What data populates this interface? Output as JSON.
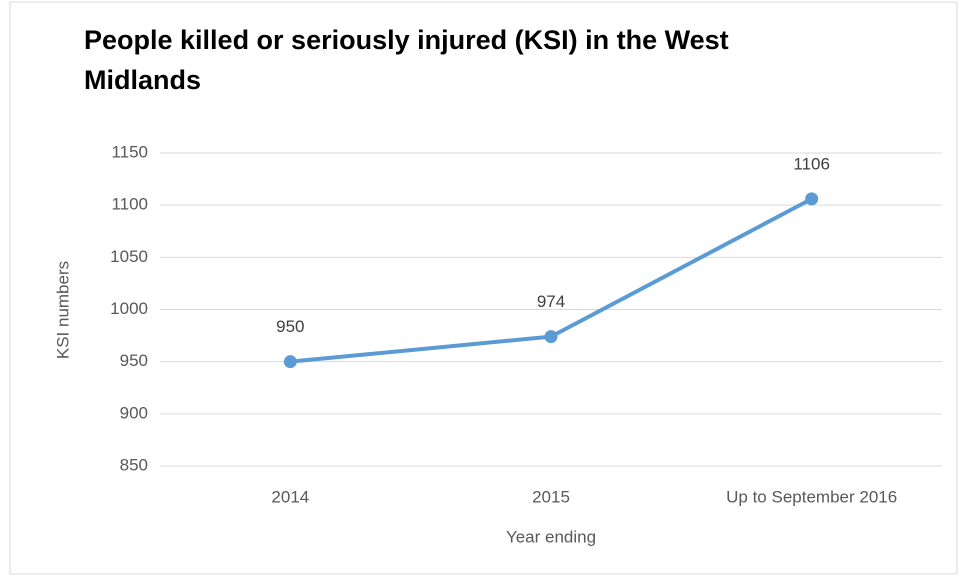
{
  "chart_data": {
    "type": "line",
    "title": "People killed or seriously injured (KSI) in the West Midlands",
    "categories": [
      "2014",
      "2015",
      "Up to September 2016"
    ],
    "series": [
      {
        "name": "KSI numbers",
        "color": "#5b9bd5",
        "values": [
          950,
          974,
          1106
        ]
      }
    ],
    "ylim": [
      850,
      1150
    ],
    "yticks": [
      850,
      900,
      950,
      1000,
      1050,
      1100,
      1150
    ],
    "y_label": "KSI numbers",
    "x_label": "Year ending",
    "grid": true
  }
}
